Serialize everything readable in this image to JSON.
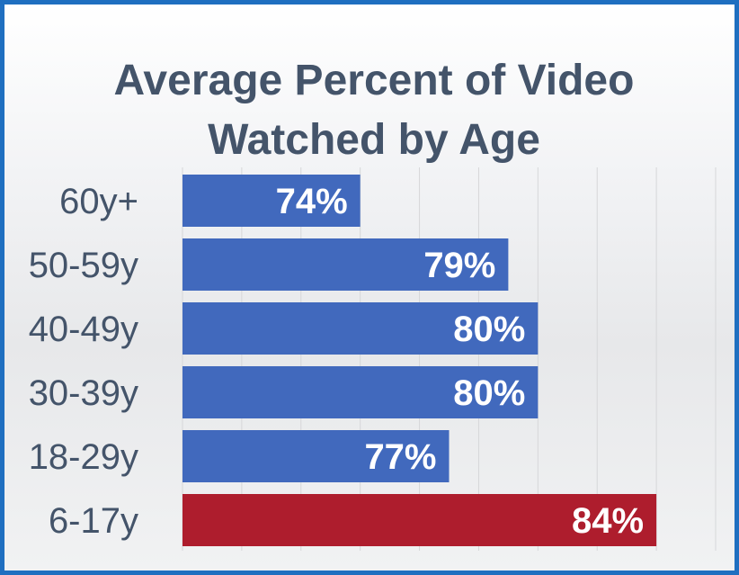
{
  "chart_data": {
    "type": "bar",
    "orientation": "horizontal",
    "title_lines": [
      "Average Percent of Video",
      "Watched by Age"
    ],
    "categories": [
      "60y+",
      "50-59y",
      "40-49y",
      "30-39y",
      "18-29y",
      "6-17y"
    ],
    "values": [
      74,
      79,
      80,
      80,
      77,
      84
    ],
    "value_labels": [
      "74%",
      "79%",
      "80%",
      "80%",
      "77%",
      "84%"
    ],
    "colors": [
      "#4169bd",
      "#4169bd",
      "#4169bd",
      "#4169bd",
      "#4169bd",
      "#ae1d2d"
    ],
    "xlim": [
      68,
      86
    ],
    "grid": true,
    "xlabel": "",
    "ylabel": ""
  },
  "style": {
    "frame_border": "#1f6fc0",
    "title_color": "#44546a",
    "label_color": "#44546a"
  }
}
